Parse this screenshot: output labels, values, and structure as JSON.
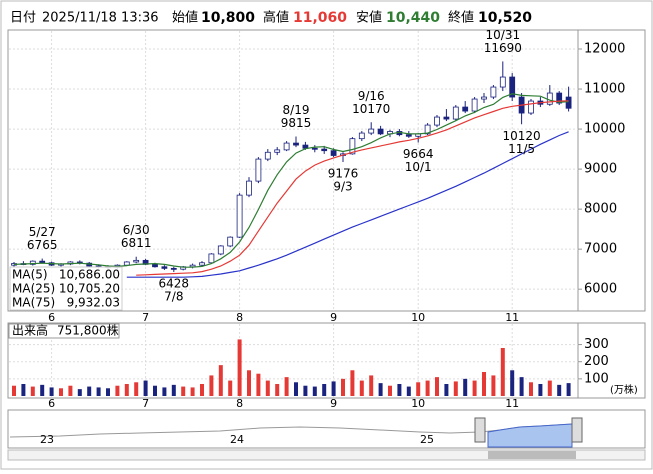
{
  "chart_data": {
    "type": "candlestick",
    "header": {
      "date_label": "日付",
      "date": "2025/11/18 13:36",
      "open_label": "始値",
      "open": "10,800",
      "high_label": "高値",
      "high": "11,060",
      "low_label": "安値",
      "low": "10,440",
      "close_label": "終値",
      "close": "10,520"
    },
    "categories": [
      null,
      null,
      null,
      null,
      "6",
      null,
      null,
      null,
      null,
      null,
      null,
      null,
      null,
      null,
      "7",
      null,
      null,
      null,
      null,
      null,
      null,
      null,
      null,
      null,
      "8",
      null,
      null,
      null,
      null,
      null,
      null,
      null,
      null,
      null,
      "9",
      null,
      null,
      null,
      null,
      null,
      null,
      null,
      null,
      "10",
      null,
      null,
      null,
      null,
      null,
      null,
      null,
      null,
      null,
      "11",
      null,
      null,
      null,
      null,
      null,
      null
    ],
    "candles": [
      [
        6600,
        6680,
        6560,
        6640
      ],
      [
        6640,
        6700,
        6600,
        6620
      ],
      [
        6620,
        6720,
        6590,
        6700
      ],
      [
        6700,
        6765,
        6640,
        6660
      ],
      [
        6660,
        6690,
        6580,
        6600
      ],
      [
        6600,
        6650,
        6560,
        6630
      ],
      [
        6630,
        6700,
        6600,
        6680
      ],
      [
        6680,
        6720,
        6620,
        6650
      ],
      [
        6650,
        6680,
        6560,
        6580
      ],
      [
        6580,
        6620,
        6520,
        6560
      ],
      [
        6560,
        6600,
        6500,
        6540
      ],
      [
        6540,
        6620,
        6510,
        6600
      ],
      [
        6600,
        6700,
        6580,
        6680
      ],
      [
        6680,
        6811,
        6650,
        6720
      ],
      [
        6720,
        6760,
        6600,
        6620
      ],
      [
        6620,
        6660,
        6540,
        6560
      ],
      [
        6560,
        6600,
        6480,
        6520
      ],
      [
        6520,
        6560,
        6428,
        6500
      ],
      [
        6500,
        6580,
        6470,
        6560
      ],
      [
        6560,
        6640,
        6520,
        6600
      ],
      [
        6600,
        6700,
        6560,
        6660
      ],
      [
        6660,
        6900,
        6640,
        6880
      ],
      [
        6880,
        7100,
        6850,
        7080
      ],
      [
        7080,
        7320,
        7050,
        7300
      ],
      [
        7300,
        8400,
        7280,
        8350
      ],
      [
        8350,
        8800,
        8300,
        8700
      ],
      [
        8700,
        9300,
        8650,
        9250
      ],
      [
        9250,
        9500,
        9200,
        9420
      ],
      [
        9420,
        9550,
        9350,
        9480
      ],
      [
        9480,
        9700,
        9450,
        9650
      ],
      [
        9650,
        9815,
        9550,
        9600
      ],
      [
        9600,
        9680,
        9480,
        9520
      ],
      [
        9520,
        9600,
        9420,
        9500
      ],
      [
        9500,
        9580,
        9380,
        9460
      ],
      [
        9460,
        9520,
        9300,
        9340
      ],
      [
        9340,
        9420,
        9176,
        9380
      ],
      [
        9380,
        9800,
        9360,
        9760
      ],
      [
        9760,
        9950,
        9700,
        9900
      ],
      [
        9900,
        10170,
        9850,
        10000
      ],
      [
        10000,
        10080,
        9850,
        9880
      ],
      [
        9880,
        9980,
        9800,
        9940
      ],
      [
        9940,
        10000,
        9820,
        9860
      ],
      [
        9860,
        9950,
        9780,
        9820
      ],
      [
        9820,
        9900,
        9664,
        9880
      ],
      [
        9880,
        10150,
        9850,
        10100
      ],
      [
        10100,
        10350,
        10050,
        10300
      ],
      [
        10300,
        10500,
        10200,
        10250
      ],
      [
        10250,
        10600,
        10200,
        10550
      ],
      [
        10550,
        10700,
        10400,
        10450
      ],
      [
        10450,
        10800,
        10400,
        10750
      ],
      [
        10750,
        10900,
        10650,
        10800
      ],
      [
        10800,
        11100,
        10750,
        11050
      ],
      [
        11050,
        11690,
        10950,
        11300
      ],
      [
        11300,
        11400,
        10700,
        10800
      ],
      [
        10800,
        10900,
        10120,
        10400
      ],
      [
        10400,
        10750,
        10350,
        10700
      ],
      [
        10700,
        10800,
        10550,
        10620
      ],
      [
        10620,
        11100,
        10580,
        10900
      ],
      [
        10900,
        10950,
        10600,
        10650
      ],
      [
        10800,
        11060,
        10440,
        10520
      ]
    ],
    "up_color": "#ffffff",
    "down_color": "#1a237e",
    "series": [
      {
        "name": "MA(5)",
        "color": "#2e7d32",
        "value_label": "10,686.00",
        "values": [
          6620,
          6630,
          6640,
          6650,
          6640,
          6630,
          6640,
          6650,
          6630,
          6610,
          6580,
          6570,
          6590,
          6620,
          6630,
          6640,
          6620,
          6580,
          6550,
          6550,
          6570,
          6640,
          6760,
          6920,
          7180,
          7540,
          7990,
          8470,
          8860,
          9180,
          9400,
          9510,
          9550,
          9560,
          9490,
          9440,
          9490,
          9560,
          9660,
          9780,
          9880,
          9920,
          9880,
          9880,
          9900,
          9990,
          10100,
          10210,
          10330,
          10420,
          10540,
          10620,
          10790,
          10880,
          10840,
          10830,
          10820,
          10720,
          10670,
          10686
        ]
      },
      {
        "name": "MA(25)",
        "color": "#e53935",
        "value_label": "10,705.20",
        "values": [
          null,
          null,
          null,
          null,
          null,
          null,
          null,
          null,
          null,
          null,
          null,
          null,
          null,
          6350,
          6360,
          6370,
          6380,
          6390,
          6400,
          6410,
          6440,
          6500,
          6580,
          6700,
          6850,
          7100,
          7450,
          7800,
          8150,
          8450,
          8750,
          8950,
          9100,
          9200,
          9280,
          9350,
          9420,
          9480,
          9530,
          9580,
          9630,
          9680,
          9720,
          9770,
          9830,
          9900,
          9980,
          10080,
          10180,
          10280,
          10360,
          10440,
          10520,
          10570,
          10600,
          10630,
          10660,
          10680,
          10700,
          10705.2
        ]
      },
      {
        "name": "MA(75)",
        "color": "#2933c9",
        "value_label": "9,932.03",
        "values": [
          null,
          null,
          null,
          null,
          null,
          null,
          null,
          null,
          null,
          null,
          null,
          null,
          6300,
          6300,
          6300,
          6300,
          6300,
          6300,
          6300,
          6310,
          6320,
          6350,
          6380,
          6420,
          6460,
          6530,
          6600,
          6680,
          6760,
          6850,
          6950,
          7050,
          7150,
          7250,
          7350,
          7450,
          7550,
          7640,
          7730,
          7820,
          7910,
          8000,
          8090,
          8180,
          8270,
          8370,
          8470,
          8570,
          8680,
          8790,
          8900,
          9020,
          9140,
          9260,
          9380,
          9500,
          9620,
          9730,
          9840,
          9932.03
        ]
      }
    ],
    "ylim": [
      5480,
      12450
    ],
    "yticks": [
      6000,
      7000,
      8000,
      9000,
      10000,
      11000,
      12000
    ],
    "grid": true,
    "annotations": [
      {
        "date": "5/27",
        "value": 6765
      },
      {
        "date": "6/30",
        "value": 6811
      },
      {
        "date": "7/8",
        "value": 6428
      },
      {
        "date": "8/19",
        "value": 9815
      },
      {
        "date": "9/3",
        "value": 9176
      },
      {
        "date": "9/16",
        "value": 10170
      },
      {
        "date": "10/1",
        "value": 9664
      },
      {
        "date": "10/31",
        "value": 11690
      },
      {
        "date": "11/5",
        "value": 10120
      }
    ],
    "volume": {
      "label": "出来高",
      "value_label": "751,800株",
      "unit": "(万株)",
      "ylim": [
        0,
        420
      ],
      "yticks": [
        100,
        200,
        300
      ],
      "up_color": "#e53935",
      "down_color": "#1a237e",
      "values": [
        60,
        70,
        55,
        65,
        50,
        45,
        60,
        40,
        55,
        50,
        45,
        60,
        70,
        80,
        90,
        60,
        50,
        65,
        55,
        50,
        70,
        120,
        180,
        90,
        330,
        150,
        130,
        90,
        70,
        110,
        80,
        60,
        55,
        70,
        85,
        100,
        150,
        90,
        120,
        75,
        60,
        70,
        55,
        80,
        90,
        110,
        70,
        85,
        100,
        90,
        140,
        120,
        280,
        150,
        110,
        80,
        70,
        90,
        65,
        75.18
      ]
    },
    "navigator": {
      "labels": [
        "23",
        "24",
        "25"
      ]
    }
  }
}
